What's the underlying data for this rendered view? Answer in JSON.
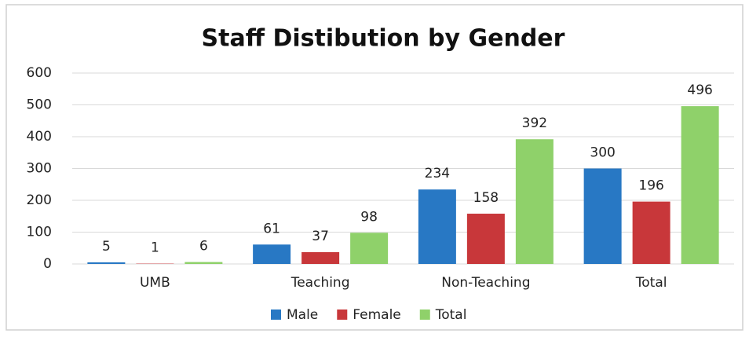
{
  "chart_data": {
    "type": "bar",
    "title": "Staff Distibution by Gender",
    "categories": [
      "UMB",
      "Teaching",
      "Non-Teaching",
      "Total"
    ],
    "series": [
      {
        "name": "Male",
        "color": "#2878c4",
        "values": [
          5,
          61,
          234,
          300
        ]
      },
      {
        "name": "Female",
        "color": "#c8373a",
        "values": [
          1,
          37,
          158,
          196
        ]
      },
      {
        "name": "Total",
        "color": "#8fd16a",
        "values": [
          6,
          98,
          392,
          496
        ]
      }
    ],
    "ylim": [
      0,
      600
    ],
    "yticks": [
      0,
      100,
      200,
      300,
      400,
      500,
      600
    ],
    "grid": true,
    "legend": "bottom",
    "data_labels": true
  }
}
